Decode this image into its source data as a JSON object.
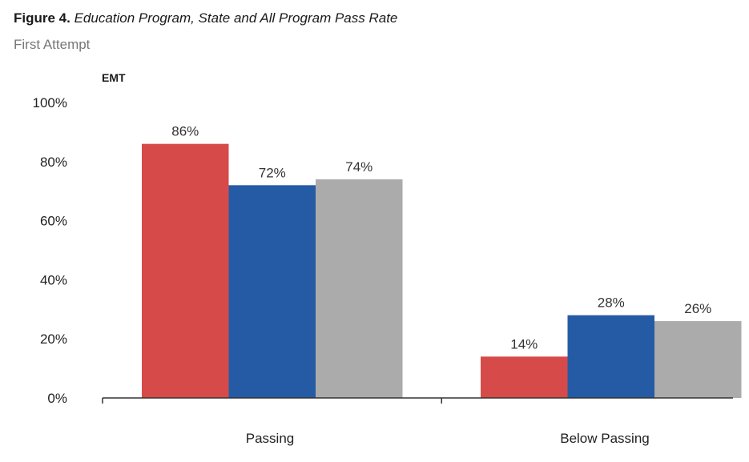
{
  "figure": {
    "label": "Figure 4.",
    "title": "Education Program, State and All Program Pass Rate",
    "subtitle": "First Attempt"
  },
  "chart_data": {
    "type": "bar",
    "title": "Education Program, State and All Program Pass Rate",
    "subtitle": "First Attempt",
    "panel_label": "EMT",
    "categories": [
      "Passing",
      "Below Passing"
    ],
    "series": [
      {
        "name": "Education Program",
        "color": "#d64b4a",
        "values": [
          86,
          14
        ],
        "labels": [
          "86%",
          "14%"
        ]
      },
      {
        "name": "State",
        "color": "#255ba4",
        "values": [
          72,
          28
        ],
        "labels": [
          "72%",
          "28%"
        ]
      },
      {
        "name": "All Program",
        "color": "#ababab",
        "values": [
          74,
          26
        ],
        "labels": [
          "74%",
          "26%"
        ]
      }
    ],
    "y_ticks": [
      0,
      20,
      40,
      60,
      80,
      100
    ],
    "y_tick_labels": [
      "0%",
      "20%",
      "40%",
      "60%",
      "80%",
      "100%"
    ],
    "ylim": [
      0,
      100
    ],
    "xlabel": "",
    "ylabel": "",
    "grid": false,
    "legend": "none"
  }
}
